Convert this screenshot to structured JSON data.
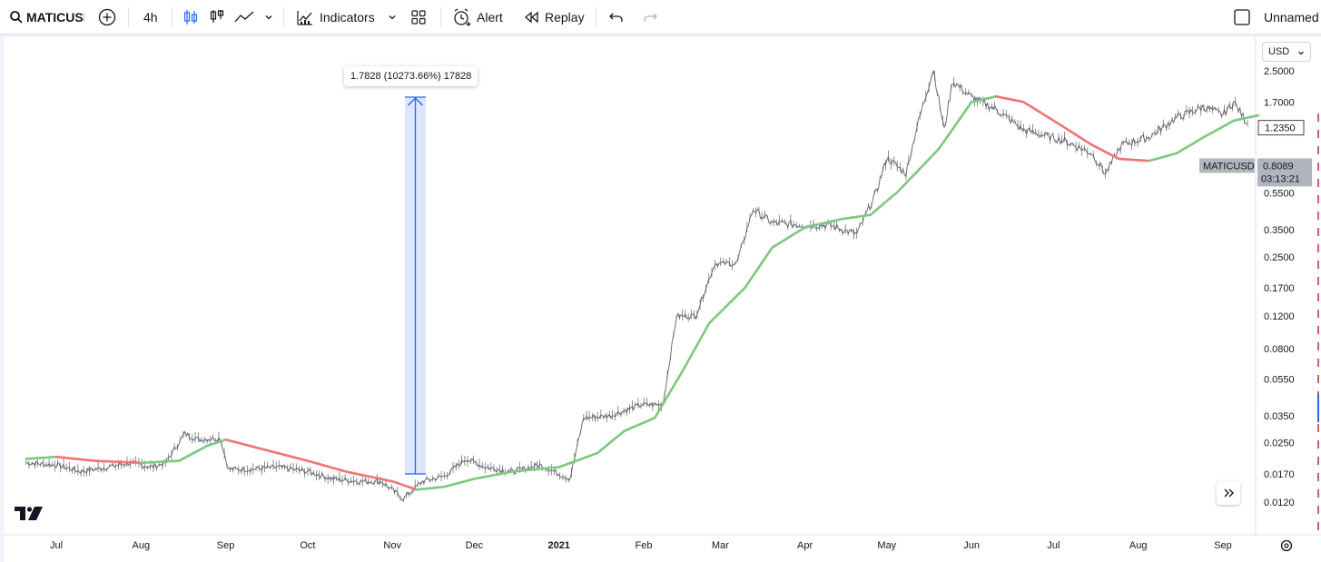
{
  "toolbar": {
    "symbol": "MATICUSD",
    "interval": "4h",
    "indicators_label": "Indicators",
    "alert_label": "Alert",
    "replay_label": "Replay",
    "layout_name": "Unnamed"
  },
  "currency": "USD",
  "measure": {
    "label": "1.7828 (10273.66%) 17828"
  },
  "price_marker": {
    "symbol": "MATICUSD",
    "price": "0.8089",
    "countdown": "03:13:21",
    "line_value": "1.2350"
  },
  "colors": {
    "ma_up": "#7ec97e",
    "ma_down": "#f27474",
    "candle": "#5d606b",
    "measure": "#2962ff",
    "axis_dash": "#e4575a"
  },
  "chart_data": {
    "type": "line",
    "scale": "log",
    "x_tick_labels": [
      "Jul",
      "Aug",
      "Sep",
      "Oct",
      "Nov",
      "Dec",
      "2021",
      "Feb",
      "Mar",
      "Apr",
      "May",
      "Jun",
      "Jul",
      "Aug",
      "Sep"
    ],
    "y_ticks": [
      2.5,
      1.7,
      1.235,
      0.8089,
      0.55,
      0.35,
      0.25,
      0.17,
      0.12,
      0.08,
      0.055,
      0.035,
      0.025,
      0.017,
      0.012
    ],
    "y_tick_labels": [
      "2.5000",
      "1.7000",
      "1.2350",
      "0.8089",
      "0.5500",
      "0.3500",
      "0.2500",
      "0.1700",
      "0.1200",
      "0.0800",
      "0.0550",
      "0.0350",
      "0.0250",
      "0.0170",
      "0.0120"
    ],
    "series": [
      {
        "type": "price",
        "points": [
          [
            "2020-06-20",
            0.0195
          ],
          [
            "2020-07-01",
            0.019
          ],
          [
            "2020-07-10",
            0.0175
          ],
          [
            "2020-07-20",
            0.0185
          ],
          [
            "2020-07-28",
            0.0195
          ],
          [
            "2020-08-05",
            0.0185
          ],
          [
            "2020-08-10",
            0.0195
          ],
          [
            "2020-08-17",
            0.028
          ],
          [
            "2020-08-22",
            0.026
          ],
          [
            "2020-08-30",
            0.0265
          ],
          [
            "2020-09-02",
            0.018
          ],
          [
            "2020-09-10",
            0.018
          ],
          [
            "2020-09-20",
            0.0185
          ],
          [
            "2020-10-01",
            0.0175
          ],
          [
            "2020-10-10",
            0.016
          ],
          [
            "2020-10-20",
            0.0155
          ],
          [
            "2020-10-28",
            0.0155
          ],
          [
            "2020-11-05",
            0.0125
          ],
          [
            "2020-11-12",
            0.0155
          ],
          [
            "2020-11-20",
            0.0165
          ],
          [
            "2020-11-28",
            0.0205
          ],
          [
            "2020-12-05",
            0.0185
          ],
          [
            "2020-12-15",
            0.0175
          ],
          [
            "2020-12-25",
            0.019
          ],
          [
            "2021-01-05",
            0.016
          ],
          [
            "2021-01-10",
            0.034
          ],
          [
            "2021-01-20",
            0.035
          ],
          [
            "2021-01-31",
            0.04
          ],
          [
            "2021-02-08",
            0.04
          ],
          [
            "2021-02-13",
            0.12
          ],
          [
            "2021-02-20",
            0.12
          ],
          [
            "2021-02-27",
            0.23
          ],
          [
            "2021-03-07",
            0.23
          ],
          [
            "2021-03-13",
            0.45
          ],
          [
            "2021-03-20",
            0.38
          ],
          [
            "2021-04-01",
            0.37
          ],
          [
            "2021-04-10",
            0.37
          ],
          [
            "2021-04-20",
            0.33
          ],
          [
            "2021-04-27",
            0.55
          ],
          [
            "2021-05-01",
            0.85
          ],
          [
            "2021-05-08",
            0.7
          ],
          [
            "2021-05-12",
            1.25
          ],
          [
            "2021-05-18",
            2.55
          ],
          [
            "2021-05-22",
            1.2
          ],
          [
            "2021-05-25",
            2.2
          ],
          [
            "2021-06-01",
            1.8
          ],
          [
            "2021-06-10",
            1.55
          ],
          [
            "2021-06-20",
            1.2
          ],
          [
            "2021-06-25",
            1.15
          ],
          [
            "2021-07-05",
            1.05
          ],
          [
            "2021-07-15",
            0.9
          ],
          [
            "2021-07-20",
            0.7
          ],
          [
            "2021-07-26",
            1.0
          ],
          [
            "2021-08-05",
            1.1
          ],
          [
            "2021-08-15",
            1.4
          ],
          [
            "2021-08-25",
            1.6
          ],
          [
            "2021-09-01",
            1.45
          ],
          [
            "2021-09-05",
            1.7
          ],
          [
            "2021-09-10",
            1.3
          ]
        ]
      },
      {
        "type": "moving_average",
        "points": [
          [
            "2020-06-20",
            0.0205
          ],
          [
            "2020-07-01",
            0.021
          ],
          [
            "2020-07-15",
            0.02
          ],
          [
            "2020-08-01",
            0.0195
          ],
          [
            "2020-08-15",
            0.02
          ],
          [
            "2020-08-25",
            0.024
          ],
          [
            "2020-09-01",
            0.026
          ],
          [
            "2020-09-15",
            0.023
          ],
          [
            "2020-10-01",
            0.02
          ],
          [
            "2020-10-15",
            0.0175
          ],
          [
            "2020-11-01",
            0.0155
          ],
          [
            "2020-11-10",
            0.014
          ],
          [
            "2020-11-20",
            0.0145
          ],
          [
            "2020-12-01",
            0.016
          ],
          [
            "2020-12-15",
            0.0175
          ],
          [
            "2021-01-01",
            0.0185
          ],
          [
            "2021-01-15",
            0.022
          ],
          [
            "2021-01-25",
            0.029
          ],
          [
            "2021-02-05",
            0.034
          ],
          [
            "2021-02-15",
            0.06
          ],
          [
            "2021-02-25",
            0.11
          ],
          [
            "2021-03-10",
            0.17
          ],
          [
            "2021-03-20",
            0.28
          ],
          [
            "2021-04-01",
            0.36
          ],
          [
            "2021-04-15",
            0.4
          ],
          [
            "2021-04-25",
            0.42
          ],
          [
            "2021-05-05",
            0.56
          ],
          [
            "2021-05-20",
            0.95
          ],
          [
            "2021-06-01",
            1.7
          ],
          [
            "2021-06-10",
            1.82
          ],
          [
            "2021-06-20",
            1.7
          ],
          [
            "2021-07-01",
            1.35
          ],
          [
            "2021-07-15",
            1.0
          ],
          [
            "2021-07-25",
            0.84
          ],
          [
            "2021-08-05",
            0.82
          ],
          [
            "2021-08-15",
            0.9
          ],
          [
            "2021-08-25",
            1.1
          ],
          [
            "2021-09-05",
            1.35
          ],
          [
            "2021-09-15",
            1.45
          ]
        ]
      }
    ]
  }
}
